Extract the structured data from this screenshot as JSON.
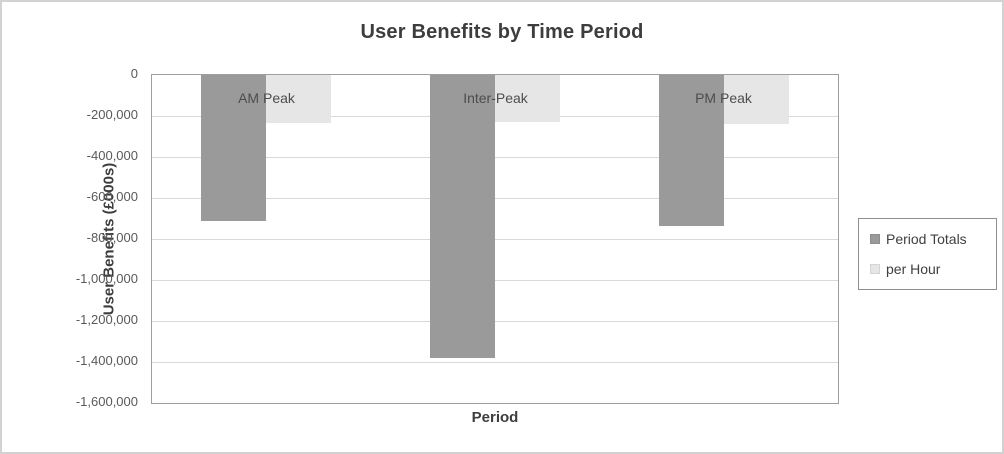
{
  "chart_data": {
    "type": "bar",
    "title": "User Benefits by Time Period",
    "xlabel": "Period",
    "ylabel": "User Benefits (£000s)",
    "categories": [
      "AM Peak",
      "Inter-Peak",
      "PM Peak"
    ],
    "series": [
      {
        "name": "Period Totals",
        "color": "#9a9a9a",
        "values": [
          -710000,
          -1380000,
          -735000
        ]
      },
      {
        "name": "per Hour",
        "color": "#e6e6e6",
        "values": [
          -235000,
          -230000,
          -240000
        ]
      }
    ],
    "ylim": [
      0,
      -1600000
    ],
    "yticks": [
      {
        "value": 0,
        "label": "0"
      },
      {
        "value": -200000,
        "label": "-200,000"
      },
      {
        "value": -400000,
        "label": "-400,000"
      },
      {
        "value": -600000,
        "label": "-600,000"
      },
      {
        "value": -800000,
        "label": "-800,000"
      },
      {
        "value": -1000000,
        "label": "-1,000,000"
      },
      {
        "value": -1200000,
        "label": "-1,200,000"
      },
      {
        "value": -1400000,
        "label": "-1,400,000"
      },
      {
        "value": -1600000,
        "label": "-1,600,000"
      }
    ],
    "grid": true,
    "legend_position": "right",
    "colors": {
      "plot_border": "#9e9e9e",
      "gridline": "#d9d9d9",
      "title_text": "#3d3d3d",
      "tick_text": "#595959"
    }
  }
}
